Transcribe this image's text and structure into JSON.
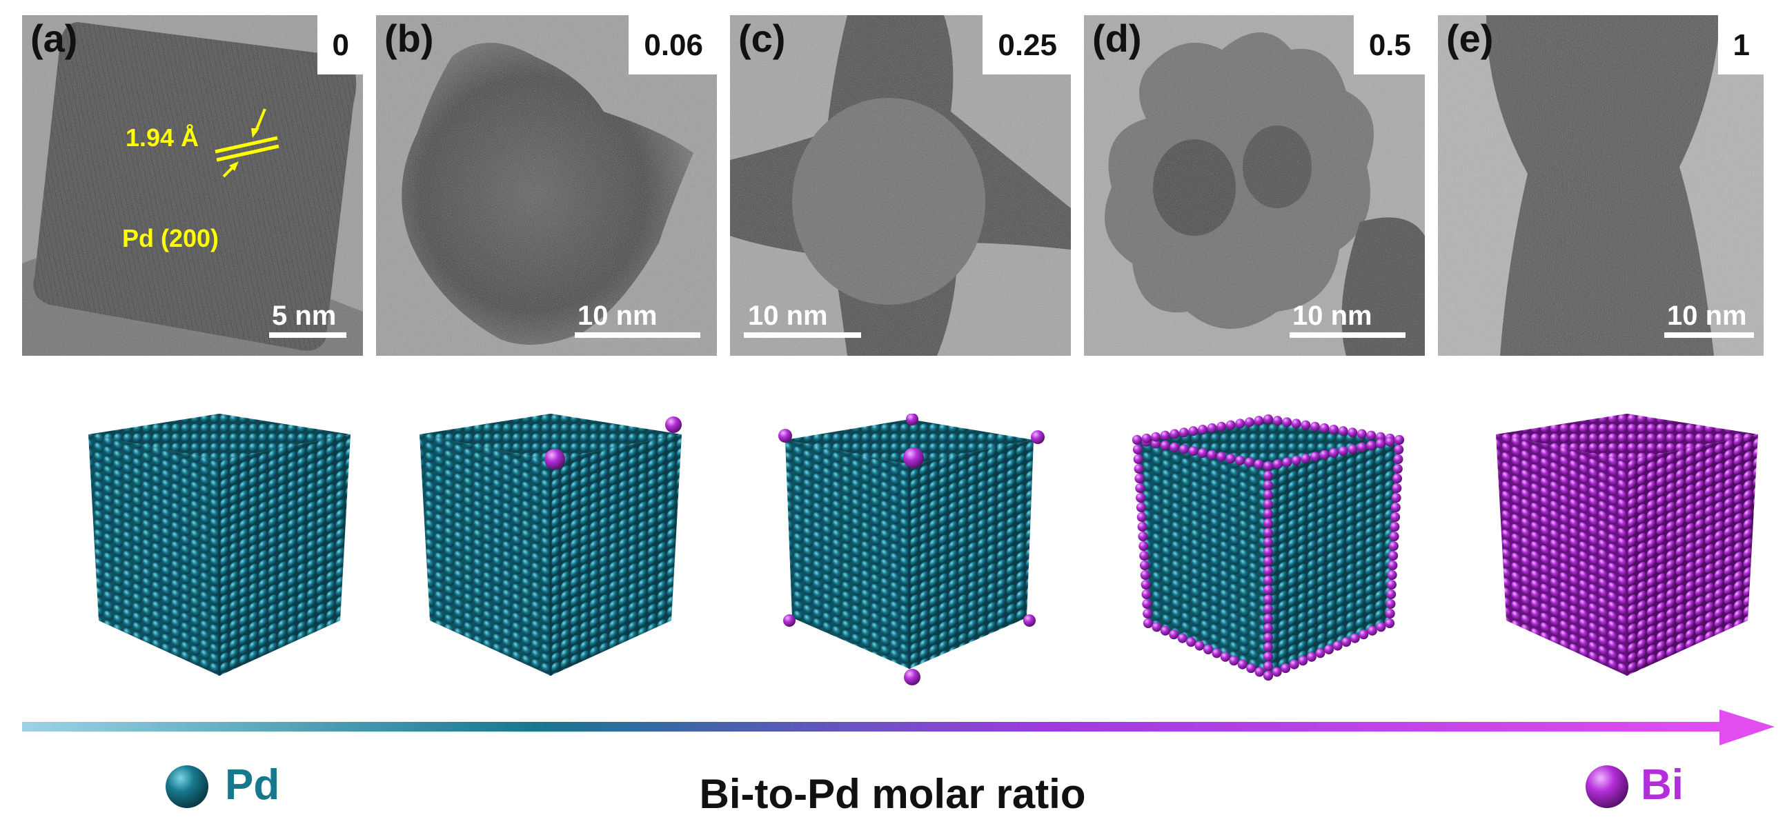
{
  "panels": [
    {
      "label": "(a)",
      "ratio": "0",
      "scale": "5 nm"
    },
    {
      "label": "(b)",
      "ratio": "0.06",
      "scale": "10 nm"
    },
    {
      "label": "(c)",
      "ratio": "0.25",
      "scale": "10 nm"
    },
    {
      "label": "(d)",
      "ratio": "0.5",
      "scale": "10 nm"
    },
    {
      "label": "(e)",
      "ratio": "1",
      "scale": "10 nm"
    }
  ],
  "annotations": {
    "lattice_spacing": "1.94 Å",
    "plane": "Pd (200)"
  },
  "legend": {
    "pd": "Pd",
    "bi": "Bi",
    "axis_title": "Bi-to-Pd molar ratio"
  },
  "colors": {
    "pd": "#17788d",
    "bi": "#b32ed8",
    "annotation": "#ffff00"
  }
}
